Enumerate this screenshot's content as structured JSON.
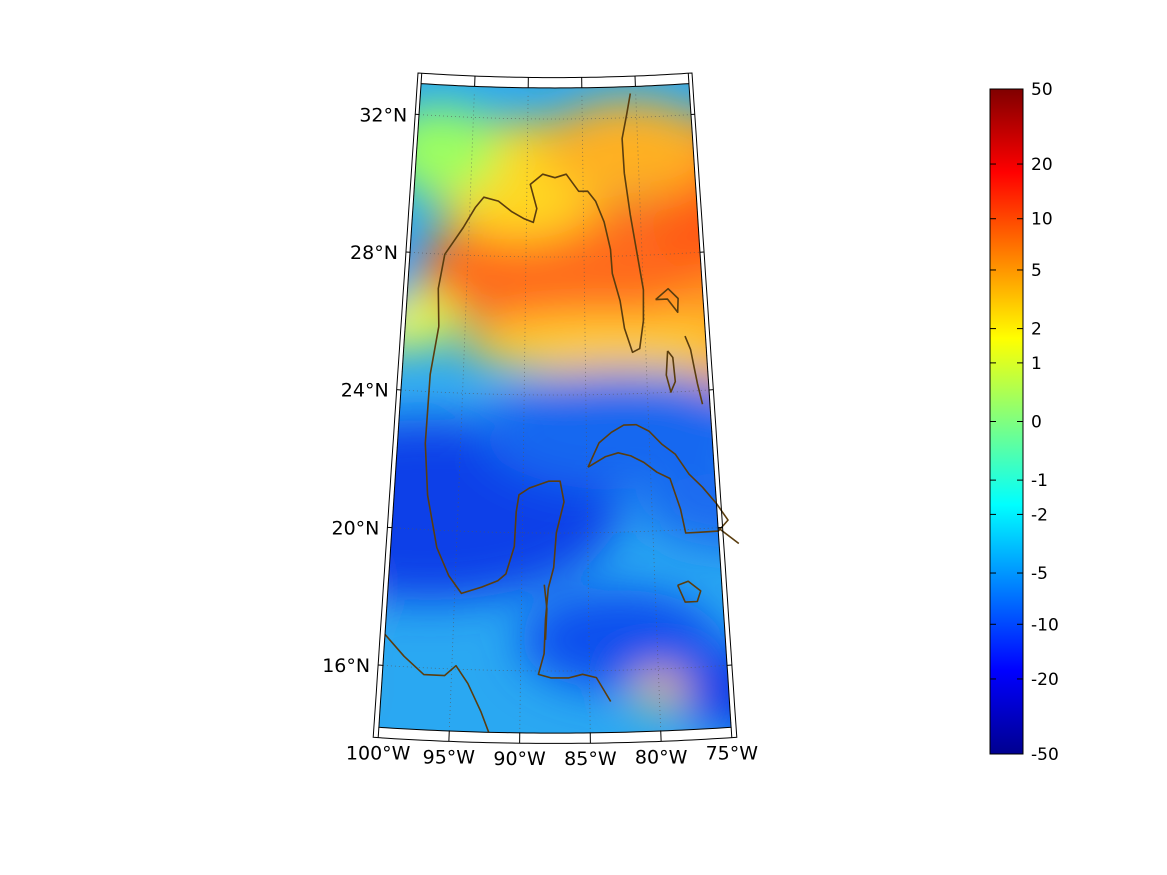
{
  "map": {
    "projection": "conic",
    "field_colormap": "jet",
    "coastline_color": "#5a3d0e",
    "frame_color": "#000000",
    "grid": true,
    "grid_style": "dotted",
    "lon_range": [
      -100,
      -75
    ],
    "lat_range": [
      14,
      33
    ],
    "longitude_ticks": [
      {
        "value": -100,
        "label": "100°W"
      },
      {
        "value": -95,
        "label": "95°W"
      },
      {
        "value": -90,
        "label": "90°W"
      },
      {
        "value": -85,
        "label": "85°W"
      },
      {
        "value": -80,
        "label": "80°W"
      },
      {
        "value": -75,
        "label": "75°W"
      }
    ],
    "latitude_ticks": [
      {
        "value": 16,
        "label": "16°N"
      },
      {
        "value": 20,
        "label": "20°N"
      },
      {
        "value": 24,
        "label": "24°N"
      },
      {
        "value": 28,
        "label": "28°N"
      },
      {
        "value": 32,
        "label": "32°N"
      }
    ]
  },
  "colorbar": {
    "placement": "right",
    "scale": "symmetric-log",
    "range": [
      -50,
      50
    ],
    "ticks": [
      {
        "value": 50,
        "label": "50"
      },
      {
        "value": 20,
        "label": "20"
      },
      {
        "value": 10,
        "label": "10"
      },
      {
        "value": 5,
        "label": "5"
      },
      {
        "value": 2,
        "label": "2"
      },
      {
        "value": 1,
        "label": "1"
      },
      {
        "value": 0,
        "label": "0"
      },
      {
        "value": -1,
        "label": "-1"
      },
      {
        "value": -2,
        "label": "-2"
      },
      {
        "value": -5,
        "label": "-5"
      },
      {
        "value": -10,
        "label": "-10"
      },
      {
        "value": -20,
        "label": "-20"
      },
      {
        "value": -50,
        "label": "-50"
      }
    ]
  }
}
